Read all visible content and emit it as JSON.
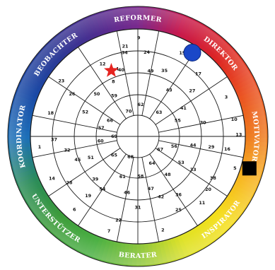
{
  "wheel": {
    "segments": [
      {
        "label": "REFORMER",
        "color": "#7a2a8e"
      },
      {
        "label": "DIREKTOR",
        "color": "#dc2424"
      },
      {
        "label": "MOTIVATOR",
        "color": "#ee7a1e"
      },
      {
        "label": "INSPIRATOR",
        "color": "#f5df1c"
      },
      {
        "label": "BERATER",
        "color": "#8cc63e"
      },
      {
        "label": "UNTERSTÜTZER",
        "color": "#3c9b3a"
      },
      {
        "label": "KOORDINATOR",
        "color": "#1d6fb8"
      },
      {
        "label": "BEOBACHTER",
        "color": "#2c3a96"
      }
    ],
    "colors": {
      "reformer_stop": "#c71a4e",
      "direktor_stop": "#ea4f22",
      "motivator_stop": "#f7b521",
      "inspirator_stop": "#dfe226",
      "berater_stop": "#4bb043",
      "unterstuetzer_stop": "#2b8c58",
      "koordinator_stop": "#1a4aa6",
      "beobachter_stop": "#4b2d8f"
    },
    "numbers": [
      {
        "text": "9",
        "a": 0.5,
        "r": 0.92
      },
      {
        "text": "34",
        "a": -9,
        "r": 0.79
      },
      {
        "text": "40",
        "a": -14,
        "r": 0.64
      },
      {
        "text": "15",
        "a": 28,
        "r": 0.88
      },
      {
        "text": "49",
        "a": 11,
        "r": 0.62
      },
      {
        "text": "24",
        "a": 6,
        "r": 0.79
      },
      {
        "text": "35",
        "a": 22,
        "r": 0.66
      },
      {
        "text": "43",
        "a": 34,
        "r": 0.52
      },
      {
        "text": "17",
        "a": 44,
        "r": 0.81
      },
      {
        "text": "27",
        "a": 50,
        "r": 0.66
      },
      {
        "text": "41",
        "a": 58,
        "r": 0.5
      },
      {
        "text": "55",
        "a": 68,
        "r": 0.4
      },
      {
        "text": "3",
        "a": 66,
        "r": 0.9
      },
      {
        "text": "30",
        "a": 78,
        "r": 0.62
      },
      {
        "text": "10",
        "a": 80,
        "r": 0.91
      },
      {
        "text": "16",
        "a": 98,
        "r": 0.84
      },
      {
        "text": "29",
        "a": 98,
        "r": 0.69
      },
      {
        "text": "44",
        "a": 99,
        "r": 0.52
      },
      {
        "text": "56",
        "a": 105,
        "r": 0.35
      },
      {
        "text": "13",
        "a": 89,
        "r": 0.94
      },
      {
        "text": "5",
        "a": 108,
        "r": 0.95
      },
      {
        "text": "38",
        "a": 119,
        "r": 0.8
      },
      {
        "text": "20",
        "a": 127,
        "r": 0.82
      },
      {
        "text": "33",
        "a": 121,
        "r": 0.6
      },
      {
        "text": "53",
        "a": 121,
        "r": 0.47
      },
      {
        "text": "48",
        "a": 142,
        "r": 0.45
      },
      {
        "text": "11",
        "a": 136,
        "r": 0.86
      },
      {
        "text": "36",
        "a": 145,
        "r": 0.66
      },
      {
        "text": "25",
        "a": 151,
        "r": 0.78
      },
      {
        "text": "2",
        "a": 165,
        "r": 0.9
      },
      {
        "text": "47",
        "a": 166,
        "r": 0.5
      },
      {
        "text": "42",
        "a": 159,
        "r": 0.6
      },
      {
        "text": "58",
        "a": 176,
        "r": 0.37
      },
      {
        "text": "22",
        "a": 193,
        "r": 0.8
      },
      {
        "text": "46",
        "a": 191,
        "r": 0.53
      },
      {
        "text": "31",
        "a": 180,
        "r": 0.66
      },
      {
        "text": "7",
        "a": 197,
        "r": 0.92
      },
      {
        "text": "61",
        "a": 201,
        "r": 0.4
      },
      {
        "text": "6",
        "a": 221,
        "r": 0.9
      },
      {
        "text": "19",
        "a": 220,
        "r": 0.72
      },
      {
        "text": "54",
        "a": 214,
        "r": 0.59
      },
      {
        "text": "39",
        "a": 225,
        "r": 0.56
      },
      {
        "text": "51",
        "a": 246,
        "r": 0.48
      },
      {
        "text": "14",
        "a": 244,
        "r": 0.89
      },
      {
        "text": "45",
        "a": 249,
        "r": 0.6
      },
      {
        "text": "28",
        "a": 236,
        "r": 0.77
      },
      {
        "text": "32",
        "a": 259,
        "r": 0.67
      },
      {
        "text": "60",
        "a": 263,
        "r": 0.35
      },
      {
        "text": "37",
        "a": 268,
        "r": 0.78
      },
      {
        "text": "1",
        "a": 264,
        "r": 0.92
      },
      {
        "text": "57",
        "a": 283,
        "r": 0.35
      },
      {
        "text": "18",
        "a": 285,
        "r": 0.84
      },
      {
        "text": "52",
        "a": 295,
        "r": 0.54
      },
      {
        "text": "26",
        "a": 303,
        "r": 0.73
      },
      {
        "text": "23",
        "a": 306,
        "r": 0.88
      },
      {
        "text": "12",
        "a": 334,
        "r": 0.75
      },
      {
        "text": "50",
        "a": 316,
        "r": 0.55
      },
      {
        "text": "59",
        "a": 330,
        "r": 0.44
      },
      {
        "text": "8",
        "a": 336,
        "r": 0.56
      },
      {
        "text": "4",
        "a": 343,
        "r": 0.66
      },
      {
        "text": "21",
        "a": 352,
        "r": 0.85
      },
      {
        "text": "62",
        "a": 5,
        "r": 0.3
      },
      {
        "text": "63",
        "a": 41,
        "r": 0.3
      },
      {
        "text": "64",
        "a": 152,
        "r": 0.28
      },
      {
        "text": "65",
        "a": 232,
        "r": 0.28
      },
      {
        "text": "66",
        "a": 300,
        "r": 0.3
      },
      {
        "text": "67",
        "a": 120,
        "r": 0.24
      },
      {
        "text": "68",
        "a": 200,
        "r": 0.2
      },
      {
        "text": "69",
        "a": 270,
        "r": 0.22
      },
      {
        "text": "70",
        "a": 340,
        "r": 0.25
      }
    ],
    "markers": {
      "star": {
        "color": "#e52420",
        "a": -22,
        "r": 0.66
      },
      "circle": {
        "color": "#1a47c8",
        "a": 33,
        "r": 0.93
      },
      "square": {
        "color": "#000000",
        "a": 106,
        "r": 1.08
      }
    }
  }
}
